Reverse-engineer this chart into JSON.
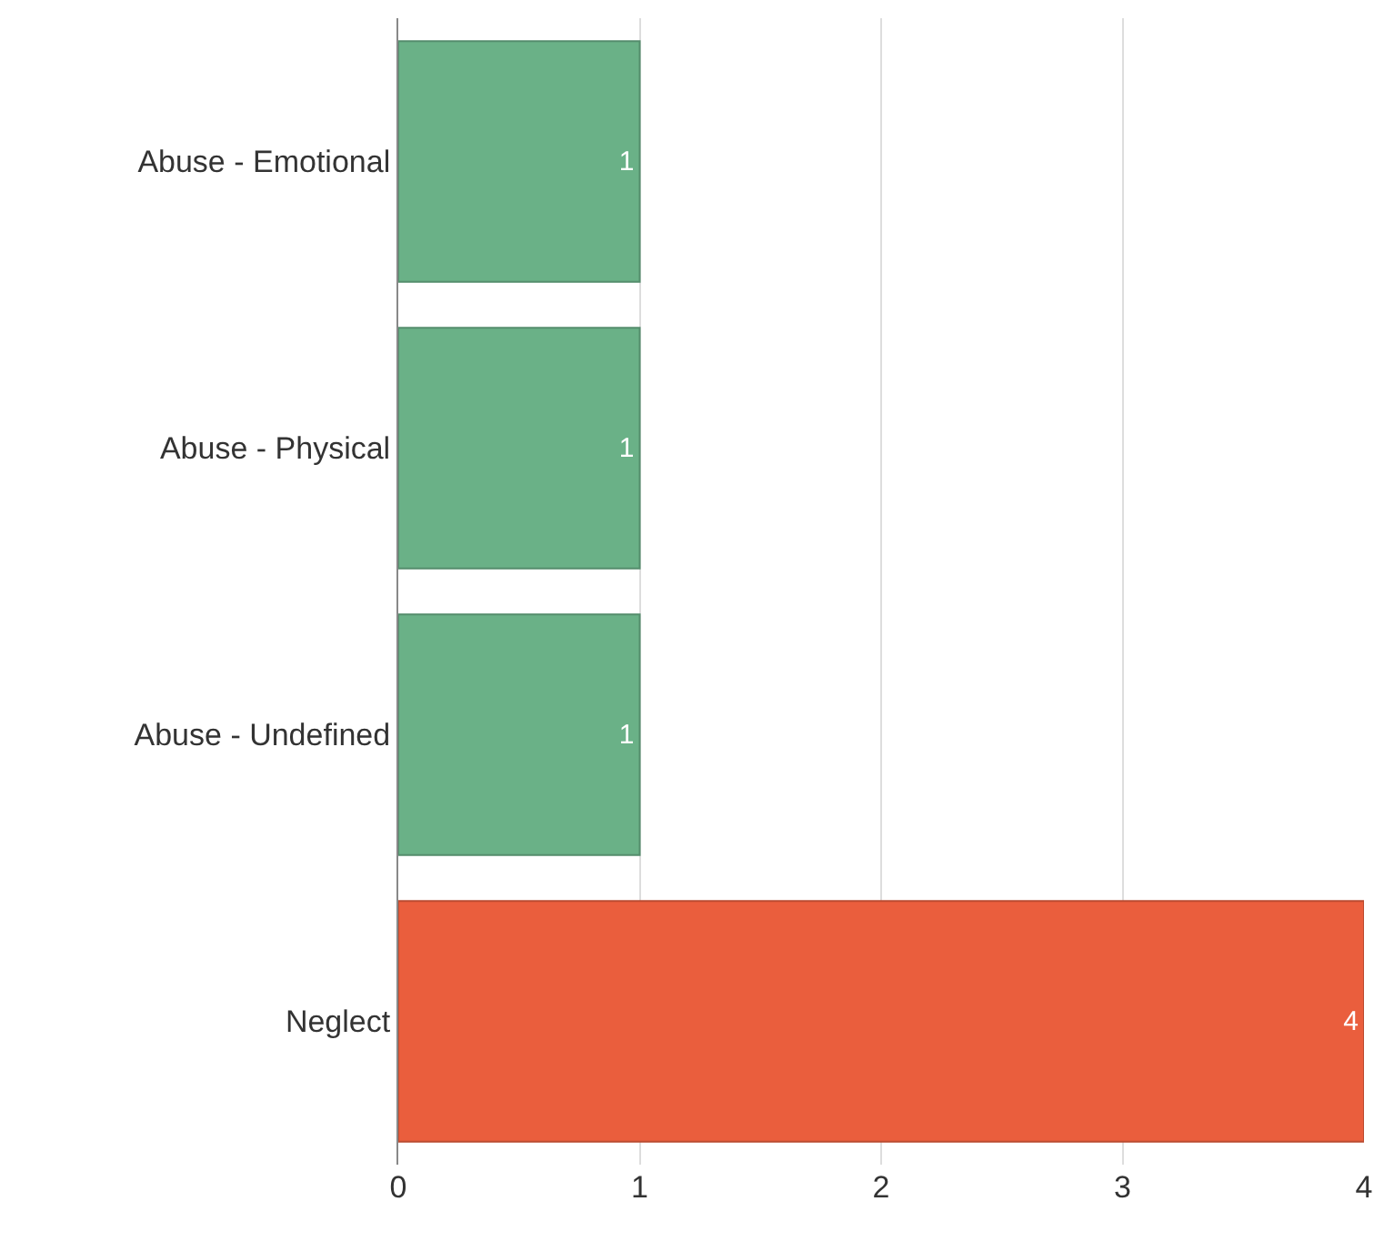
{
  "chart_data": {
    "type": "bar",
    "orientation": "horizontal",
    "categories": [
      "Abuse - Emotional",
      "Abuse - Physical",
      "Abuse - Undefined",
      "Neglect"
    ],
    "values": [
      1,
      1,
      1,
      4
    ],
    "colors": [
      "#6ab187",
      "#6ab187",
      "#6ab187",
      "#ea5e3d"
    ],
    "xlim": [
      0,
      4
    ],
    "xticks": [
      0,
      1,
      2,
      3,
      4
    ],
    "grid": "x",
    "data_labels": true,
    "legend": false
  }
}
